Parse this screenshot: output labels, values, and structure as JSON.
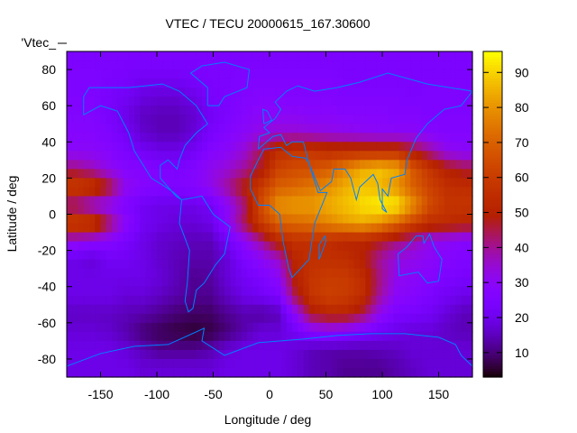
{
  "chart_data": {
    "type": "heatmap",
    "title": "VTEC / TECU 20000615_167.30600",
    "xlabel": "Longitude / deg",
    "ylabel": "Latitude / deg",
    "key_label": "'Vtec_",
    "xlim": [
      -180,
      180
    ],
    "ylim": [
      -90,
      90
    ],
    "cbrange": [
      3,
      96
    ],
    "xticks": [
      -150,
      -100,
      -50,
      0,
      50,
      100,
      150
    ],
    "yticks": [
      -80,
      -60,
      -40,
      -20,
      0,
      20,
      40,
      60,
      80
    ],
    "cbticks": [
      10,
      20,
      30,
      40,
      50,
      60,
      70,
      80,
      90
    ],
    "palette": "black-blue-purple-red-orange-yellow",
    "coastline_color": "#0080ff",
    "grid_lon_centers": [
      -172.5,
      -157.5,
      -142.5,
      -127.5,
      -112.5,
      -97.5,
      -82.5,
      -67.5,
      -52.5,
      -37.5,
      -22.5,
      -7.5,
      7.5,
      22.5,
      37.5,
      52.5,
      67.5,
      82.5,
      97.5,
      112.5,
      127.5,
      142.5,
      157.5,
      172.5
    ],
    "grid_lat_centers": [
      85,
      75,
      65,
      55,
      45,
      35,
      25,
      15,
      5,
      -5,
      -15,
      -25,
      -35,
      -45,
      -55,
      -65,
      -75,
      -85
    ],
    "vtec": [
      [
        25,
        25,
        25,
        25,
        25,
        25,
        25,
        25,
        25,
        25,
        25,
        25,
        25,
        25,
        25,
        25,
        25,
        25,
        25,
        25,
        25,
        25,
        25,
        25
      ],
      [
        26,
        26,
        25,
        24,
        22,
        22,
        22,
        24,
        25,
        25,
        26,
        26,
        26,
        26,
        26,
        26,
        25,
        25,
        25,
        25,
        25,
        25,
        25,
        25
      ],
      [
        26,
        26,
        24,
        22,
        19,
        18,
        18,
        20,
        24,
        25,
        27,
        28,
        28,
        27,
        27,
        27,
        26,
        26,
        26,
        26,
        25,
        26,
        26,
        26
      ],
      [
        27,
        27,
        24,
        20,
        16,
        15,
        15,
        17,
        22,
        25,
        28,
        30,
        30,
        30,
        29,
        29,
        28,
        28,
        28,
        27,
        27,
        26,
        26,
        26
      ],
      [
        28,
        28,
        26,
        22,
        17,
        15,
        15,
        18,
        24,
        27,
        30,
        33,
        35,
        35,
        34,
        33,
        32,
        31,
        30,
        30,
        30,
        28,
        27,
        27
      ],
      [
        30,
        30,
        28,
        25,
        22,
        20,
        20,
        22,
        27,
        30,
        35,
        45,
        55,
        58,
        58,
        55,
        55,
        55,
        55,
        55,
        48,
        40,
        32,
        30
      ],
      [
        42,
        38,
        32,
        28,
        28,
        26,
        25,
        27,
        32,
        35,
        40,
        48,
        62,
        65,
        66,
        70,
        78,
        85,
        88,
        85,
        68,
        58,
        50,
        46
      ],
      [
        62,
        60,
        48,
        32,
        28,
        27,
        26,
        28,
        32,
        40,
        50,
        60,
        70,
        72,
        75,
        80,
        85,
        88,
        86,
        80,
        70,
        62,
        56,
        55
      ],
      [
        38,
        32,
        30,
        26,
        22,
        20,
        20,
        20,
        22,
        30,
        42,
        65,
        80,
        82,
        82,
        85,
        88,
        92,
        95,
        94,
        80,
        65,
        58,
        58
      ],
      [
        64,
        62,
        45,
        30,
        22,
        20,
        18,
        18,
        20,
        30,
        45,
        60,
        70,
        72,
        74,
        78,
        82,
        84,
        80,
        72,
        62,
        55,
        54,
        52
      ],
      [
        32,
        30,
        28,
        24,
        20,
        17,
        16,
        15,
        15,
        22,
        30,
        40,
        52,
        56,
        56,
        55,
        52,
        52,
        48,
        42,
        38,
        32,
        30,
        28
      ],
      [
        20,
        18,
        22,
        22,
        20,
        17,
        15,
        14,
        14,
        18,
        25,
        30,
        36,
        52,
        56,
        56,
        55,
        50,
        40,
        34,
        32,
        30,
        28,
        26
      ],
      [
        20,
        20,
        20,
        20,
        20,
        18,
        15,
        12,
        13,
        18,
        22,
        25,
        30,
        50,
        58,
        60,
        60,
        55,
        42,
        32,
        30,
        28,
        25,
        24
      ],
      [
        20,
        20,
        20,
        18,
        18,
        16,
        14,
        12,
        12,
        16,
        20,
        22,
        25,
        45,
        58,
        62,
        60,
        55,
        40,
        30,
        28,
        25,
        22,
        20
      ],
      [
        16,
        16,
        16,
        15,
        14,
        12,
        10,
        9,
        9,
        12,
        14,
        13,
        15,
        30,
        48,
        52,
        52,
        45,
        32,
        25,
        24,
        22,
        18,
        15
      ],
      [
        18,
        18,
        17,
        14,
        10,
        8,
        7,
        6,
        7,
        10,
        14,
        18,
        18,
        22,
        28,
        30,
        28,
        25,
        22,
        20,
        18,
        18,
        16,
        15
      ],
      [
        20,
        20,
        20,
        18,
        15,
        12,
        12,
        12,
        14,
        18,
        20,
        20,
        20,
        18,
        15,
        14,
        14,
        14,
        15,
        16,
        18,
        18,
        18,
        18
      ],
      [
        20,
        20,
        20,
        20,
        18,
        18,
        18,
        18,
        18,
        20,
        20,
        20,
        20,
        18,
        15,
        14,
        12,
        12,
        12,
        14,
        16,
        18,
        18,
        18
      ]
    ],
    "coastlines": [
      {
        "name": "north-america",
        "points": [
          [
            -165,
            65
          ],
          [
            -160,
            70
          ],
          [
            -140,
            70
          ],
          [
            -125,
            70
          ],
          [
            -95,
            72
          ],
          [
            -80,
            68
          ],
          [
            -65,
            60
          ],
          [
            -55,
            50
          ],
          [
            -65,
            45
          ],
          [
            -75,
            38
          ],
          [
            -80,
            30
          ],
          [
            -82,
            25
          ],
          [
            -90,
            30
          ],
          [
            -97,
            27
          ],
          [
            -97,
            20
          ],
          [
            -90,
            15
          ],
          [
            -83,
            10
          ],
          [
            -78,
            8
          ],
          [
            -85,
            12
          ],
          [
            -92,
            15
          ],
          [
            -105,
            20
          ],
          [
            -115,
            30
          ],
          [
            -120,
            35
          ],
          [
            -125,
            45
          ],
          [
            -135,
            57
          ],
          [
            -150,
            60
          ],
          [
            -165,
            55
          ],
          [
            -165,
            65
          ]
        ]
      },
      {
        "name": "south-america",
        "points": [
          [
            -78,
            8
          ],
          [
            -60,
            10
          ],
          [
            -50,
            0
          ],
          [
            -35,
            -7
          ],
          [
            -40,
            -22
          ],
          [
            -48,
            -28
          ],
          [
            -58,
            -38
          ],
          [
            -65,
            -42
          ],
          [
            -68,
            -52
          ],
          [
            -72,
            -54
          ],
          [
            -75,
            -48
          ],
          [
            -73,
            -38
          ],
          [
            -71,
            -20
          ],
          [
            -80,
            -5
          ],
          [
            -78,
            8
          ]
        ]
      },
      {
        "name": "africa",
        "points": [
          [
            -17,
            21
          ],
          [
            -10,
            30
          ],
          [
            -5,
            36
          ],
          [
            10,
            37
          ],
          [
            20,
            32
          ],
          [
            32,
            31
          ],
          [
            35,
            28
          ],
          [
            43,
            12
          ],
          [
            51,
            12
          ],
          [
            40,
            -5
          ],
          [
            35,
            -25
          ],
          [
            20,
            -35
          ],
          [
            17,
            -30
          ],
          [
            12,
            -15
          ],
          [
            9,
            0
          ],
          [
            0,
            5
          ],
          [
            -10,
            5
          ],
          [
            -17,
            14
          ],
          [
            -17,
            21
          ]
        ]
      },
      {
        "name": "eurasia",
        "points": [
          [
            -10,
            36
          ],
          [
            -9,
            43
          ],
          [
            0,
            45
          ],
          [
            -5,
            48
          ],
          [
            5,
            53
          ],
          [
            10,
            58
          ],
          [
            5,
            62
          ],
          [
            15,
            68
          ],
          [
            25,
            71
          ],
          [
            40,
            68
          ],
          [
            60,
            70
          ],
          [
            80,
            73
          ],
          [
            105,
            78
          ],
          [
            140,
            72
          ],
          [
            180,
            68
          ],
          [
            170,
            60
          ],
          [
            155,
            58
          ],
          [
            140,
            50
          ],
          [
            130,
            42
          ],
          [
            122,
            30
          ],
          [
            120,
            22
          ],
          [
            108,
            20
          ],
          [
            105,
            10
          ],
          [
            100,
            14
          ],
          [
            100,
            3
          ],
          [
            104,
            1
          ],
          [
            98,
            8
          ],
          [
            96,
            17
          ],
          [
            92,
            22
          ],
          [
            80,
            15
          ],
          [
            77,
            8
          ],
          [
            72,
            20
          ],
          [
            67,
            25
          ],
          [
            57,
            25
          ],
          [
            55,
            18
          ],
          [
            45,
            13
          ],
          [
            35,
            28
          ],
          [
            30,
            40
          ],
          [
            26,
            40
          ],
          [
            20,
            40
          ],
          [
            15,
            38
          ],
          [
            10,
            44
          ],
          [
            3,
            43
          ],
          [
            -10,
            36
          ]
        ]
      },
      {
        "name": "australia",
        "points": [
          [
            114,
            -22
          ],
          [
            122,
            -18
          ],
          [
            130,
            -12
          ],
          [
            136,
            -12
          ],
          [
            137,
            -16
          ],
          [
            142,
            -11
          ],
          [
            146,
            -18
          ],
          [
            153,
            -25
          ],
          [
            150,
            -37
          ],
          [
            140,
            -38
          ],
          [
            132,
            -32
          ],
          [
            115,
            -34
          ],
          [
            114,
            -22
          ]
        ]
      },
      {
        "name": "antarctica",
        "points": [
          [
            -180,
            -84
          ],
          [
            -150,
            -77
          ],
          [
            -120,
            -73
          ],
          [
            -90,
            -72
          ],
          [
            -65,
            -65
          ],
          [
            -58,
            -63
          ],
          [
            -60,
            -70
          ],
          [
            -40,
            -78
          ],
          [
            -10,
            -71
          ],
          [
            30,
            -69
          ],
          [
            60,
            -67
          ],
          [
            90,
            -66
          ],
          [
            120,
            -66
          ],
          [
            150,
            -68
          ],
          [
            165,
            -72
          ],
          [
            170,
            -78
          ],
          [
            180,
            -84
          ]
        ]
      },
      {
        "name": "greenland",
        "points": [
          [
            -55,
            60
          ],
          [
            -45,
            60
          ],
          [
            -40,
            65
          ],
          [
            -20,
            70
          ],
          [
            -18,
            80
          ],
          [
            -40,
            84
          ],
          [
            -60,
            82
          ],
          [
            -70,
            78
          ],
          [
            -55,
            70
          ],
          [
            -55,
            60
          ]
        ]
      },
      {
        "name": "madagascar",
        "points": [
          [
            44,
            -25
          ],
          [
            50,
            -15
          ],
          [
            49,
            -12
          ],
          [
            44,
            -17
          ],
          [
            44,
            -25
          ]
        ]
      },
      {
        "name": "great-britain",
        "points": [
          [
            -5,
            50
          ],
          [
            2,
            52
          ],
          [
            -2,
            57
          ],
          [
            -6,
            58
          ],
          [
            -5,
            50
          ]
        ]
      }
    ]
  }
}
